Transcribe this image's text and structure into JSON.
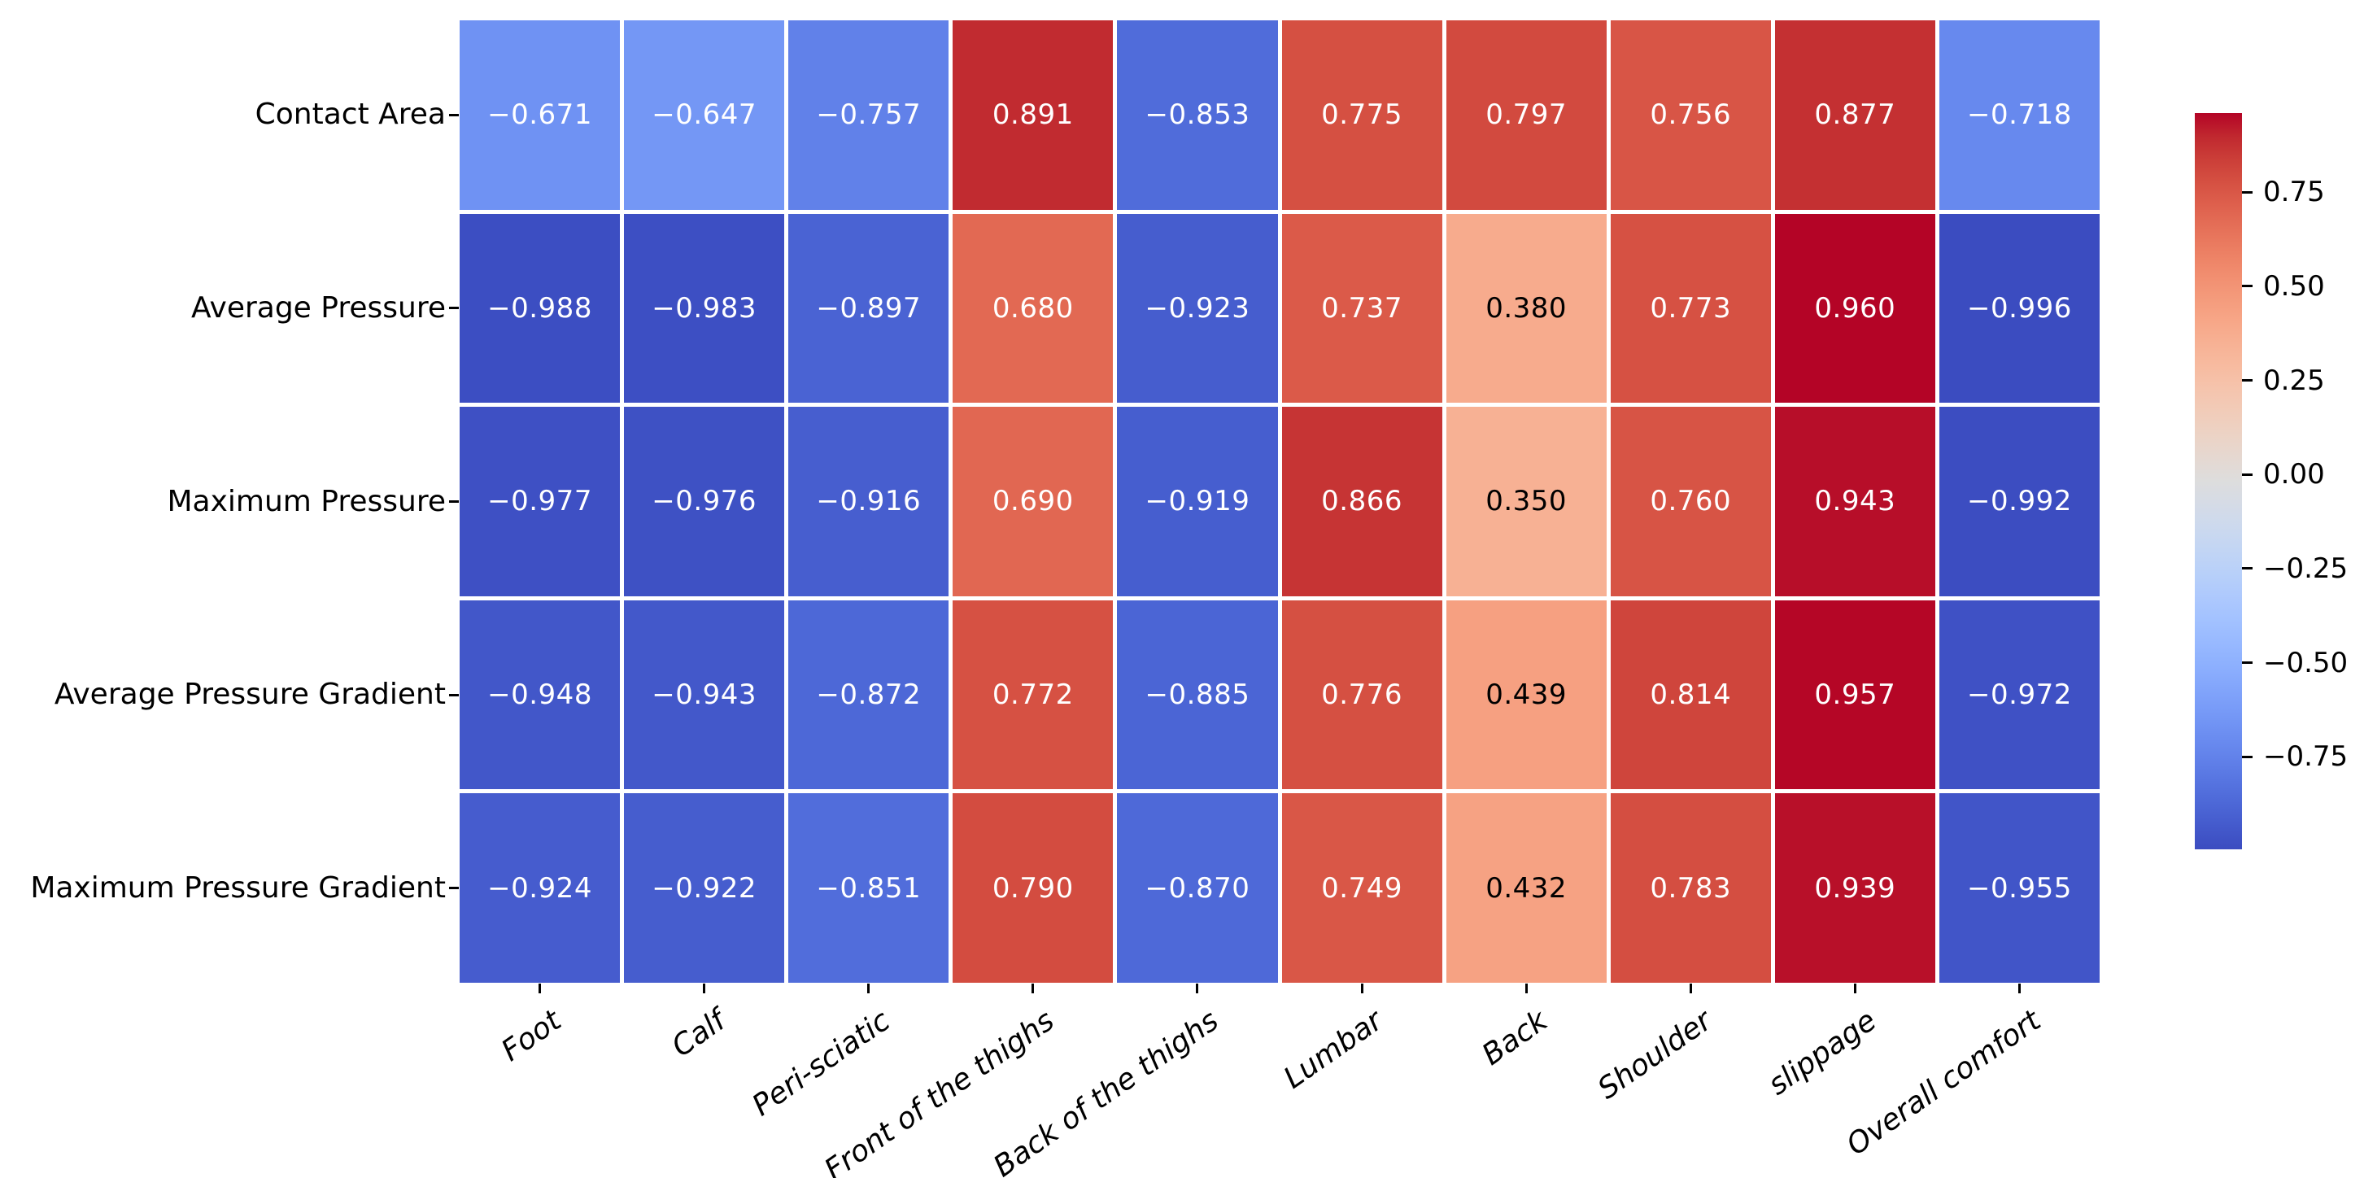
{
  "chart_data": {
    "type": "heatmap",
    "title": "",
    "rows": [
      "Contact Area",
      "Average Pressure",
      "Maximum Pressure",
      "Average Pressure Gradient",
      "Maximum Pressure Gradient"
    ],
    "columns": [
      "Foot",
      "Calf",
      "Peri-sciatic",
      "Front of the thighs",
      "Back of the thighs",
      "Lumbar",
      "Back",
      "Shoulder",
      "slippage",
      "Overall comfort"
    ],
    "values": [
      [
        -0.671,
        -0.647,
        -0.757,
        0.891,
        -0.853,
        0.775,
        0.797,
        0.756,
        0.877,
        -0.718
      ],
      [
        -0.988,
        -0.983,
        -0.897,
        0.68,
        -0.923,
        0.737,
        0.38,
        0.773,
        0.96,
        -0.996
      ],
      [
        -0.977,
        -0.976,
        -0.916,
        0.69,
        -0.919,
        0.866,
        0.35,
        0.76,
        0.943,
        -0.992
      ],
      [
        -0.948,
        -0.943,
        -0.872,
        0.772,
        -0.885,
        0.776,
        0.439,
        0.814,
        0.957,
        -0.972
      ],
      [
        -0.924,
        -0.922,
        -0.851,
        0.79,
        -0.87,
        0.749,
        0.432,
        0.783,
        0.939,
        -0.955
      ]
    ],
    "value_format_decimals": 3,
    "colormap": "coolwarm",
    "vmin": -0.996,
    "vmax": 0.96,
    "gridlines": "white",
    "colorbar": {
      "position": "right",
      "ticks": [
        0.75,
        0.5,
        0.25,
        0.0,
        -0.25,
        -0.5,
        -0.75
      ],
      "tick_labels": [
        "0.75",
        "0.50",
        "0.25",
        "0.00",
        "−0.25",
        "−0.50",
        "−0.75"
      ]
    },
    "annotation_colors": {
      "light_cell_text": "#000000",
      "dark_cell_text": "#ffffff"
    },
    "xlabel": "",
    "ylabel": "",
    "x_tick_rotation_deg": 35,
    "x_tick_style": "italic"
  }
}
